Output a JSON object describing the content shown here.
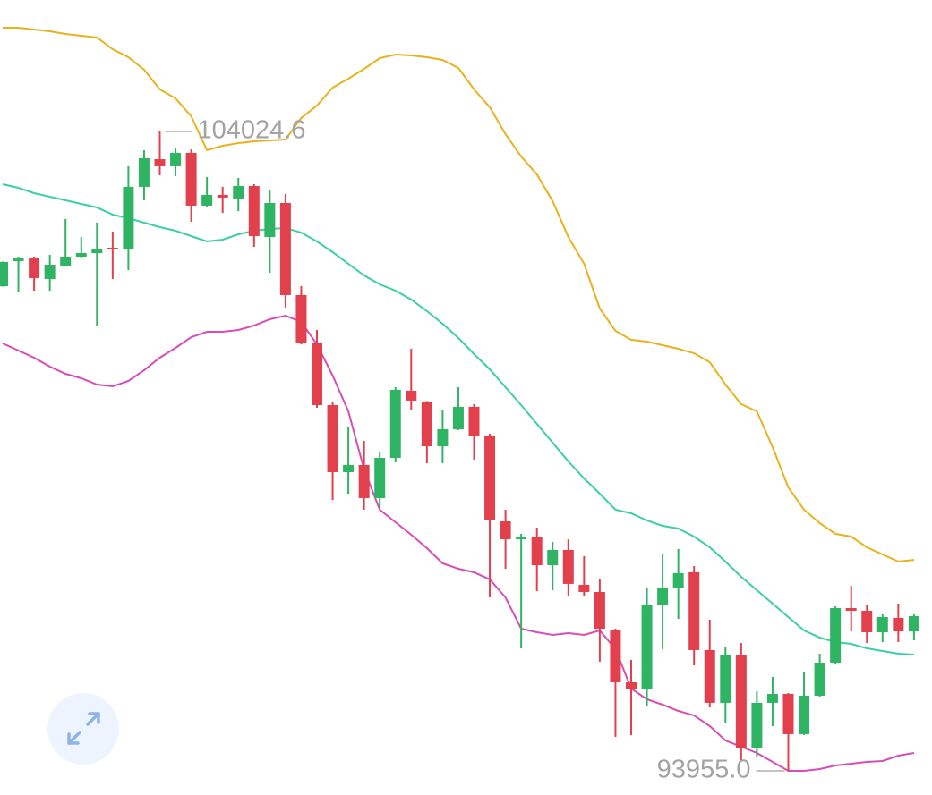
{
  "chart_data": {
    "type": "candlestick",
    "up_color": "#2fb464",
    "down_color": "#e2404d",
    "open": [
      101588,
      101983,
      102025,
      101701,
      101912,
      102053,
      102109,
      102194,
      102166,
      103152,
      103588,
      103476,
      103687,
      102856,
      103025,
      102969,
      103166,
      102363,
      102898,
      101448,
      100701,
      99715,
      98659,
      98772,
      98251,
      98884,
      99941,
      99772,
      99067,
      99335,
      99687,
      99222,
      97885,
      97603,
      97631,
      97194,
      97434,
      96885,
      96772,
      96180,
      95349,
      95237,
      96561,
      96828,
      97082,
      95857,
      95026,
      95772,
      94321,
      95026,
      95166,
      94533,
      95138,
      95659,
      96518,
      96476,
      96138,
      96364,
      96152
    ],
    "high": [
      101975,
      102053,
      102053,
      102081,
      102645,
      102363,
      102588,
      102447,
      103476,
      103729,
      104024.6,
      103771,
      103743,
      103307,
      103152,
      103293,
      103194,
      103109,
      103039,
      101588,
      100898,
      99758,
      99363,
      99152,
      98983,
      99997,
      100603,
      99780,
      99645,
      99997,
      99729,
      99265,
      98068,
      97687,
      97786,
      97561,
      97603,
      97335,
      96983,
      96194,
      95701,
      96828,
      97363,
      97448,
      97180,
      96335,
      95899,
      95969,
      95209,
      95434,
      95180,
      95504,
      95800,
      96546,
      96871,
      96561,
      96420,
      96589,
      96420
    ],
    "low": [
      101580,
      101504,
      101518,
      101518,
      101900,
      102025,
      100969,
      101701,
      101842,
      102940,
      103335,
      103321,
      102602,
      102828,
      102743,
      102771,
      102208,
      101800,
      101250,
      100673,
      99673,
      98222,
      98321,
      98068,
      98096,
      98814,
      99631,
      98800,
      98800,
      99320,
      98856,
      96687,
      97138,
      95885,
      96786,
      96800,
      96716,
      96701,
      95673,
      94490,
      94518,
      94983,
      95871,
      96349,
      95617,
      94955,
      94716,
      94124,
      94180,
      94660,
      93955,
      94518,
      95124,
      95645,
      96152,
      95969,
      95983,
      95983,
      96011
    ],
    "close": [
      101969,
      102025,
      101715,
      101926,
      102053,
      102109,
      102180,
      102166,
      103152,
      103602,
      103476,
      103687,
      102856,
      103025,
      102983,
      103166,
      102377,
      102898,
      101448,
      100701,
      99715,
      98659,
      98772,
      98251,
      98884,
      99955,
      99786,
      99067,
      99335,
      99687,
      99236,
      97899,
      97603,
      97645,
      97194,
      97434,
      96899,
      96772,
      96194,
      95349,
      95237,
      96561,
      96828,
      97068,
      95857,
      95026,
      95772,
      94321,
      95026,
      95166,
      94533,
      95138,
      95659,
      96518,
      96476,
      96138,
      96378,
      96152,
      96392
    ],
    "series": [
      {
        "color": "#e9b21c",
        "values": [
          105658,
          105658,
          105630,
          105602,
          105560,
          105532,
          105504,
          105320,
          105194,
          104997,
          104687,
          104546,
          104264,
          103729,
          103799,
          103842,
          103870,
          103884,
          103898,
          104236,
          104433,
          104715,
          104856,
          105011,
          105180,
          105236,
          105222,
          105194,
          105151,
          105025,
          104687,
          104405,
          103983,
          103630,
          103349,
          102926,
          102363,
          101940,
          101236,
          100884,
          100743,
          100715,
          100659,
          100603,
          100532,
          100391,
          100039,
          99729,
          99617,
          99053,
          98420,
          98068,
          97856,
          97687,
          97645,
          97476,
          97363,
          97251,
          97279
        ]
      },
      {
        "color": "#3ccfa6",
        "values": [
          103194,
          103138,
          103053,
          102997,
          102940,
          102884,
          102828,
          102715,
          102659,
          102588,
          102518,
          102462,
          102377,
          102293,
          102321,
          102405,
          102462,
          102490,
          102504,
          102433,
          102293,
          102124,
          101940,
          101757,
          101617,
          101518,
          101377,
          101194,
          100997,
          100772,
          100518,
          100279,
          99997,
          99715,
          99420,
          99124,
          98828,
          98560,
          98321,
          98068,
          98011,
          97899,
          97814,
          97772,
          97645,
          97476,
          97251,
          97011,
          96800,
          96589,
          96378,
          96166,
          96054,
          95983,
          95955,
          95885,
          95842,
          95800,
          95786
        ]
      },
      {
        "color": "#d84cb6",
        "values": [
          100687,
          100574,
          100462,
          100321,
          100208,
          100138,
          100039,
          100011,
          100096,
          100265,
          100462,
          100617,
          100786,
          100870,
          100870,
          100898,
          100969,
          101067,
          101124,
          101025,
          100673,
          100180,
          99617,
          98701,
          98068,
          97870,
          97673,
          97462,
          97222,
          97138,
          97082,
          96969,
          96687,
          96194,
          96138,
          96096,
          96124,
          96096,
          96166,
          95871,
          95251,
          95082,
          94997,
          94899,
          94828,
          94660,
          94434,
          94335,
          94237,
          94096,
          93955,
          93955,
          93983,
          94040,
          94068,
          94096,
          94110,
          94195,
          94237
        ]
      }
    ],
    "max_label": 104024.6,
    "min_label": {
      "value": 93955,
      "label": "93955.0"
    }
  }
}
